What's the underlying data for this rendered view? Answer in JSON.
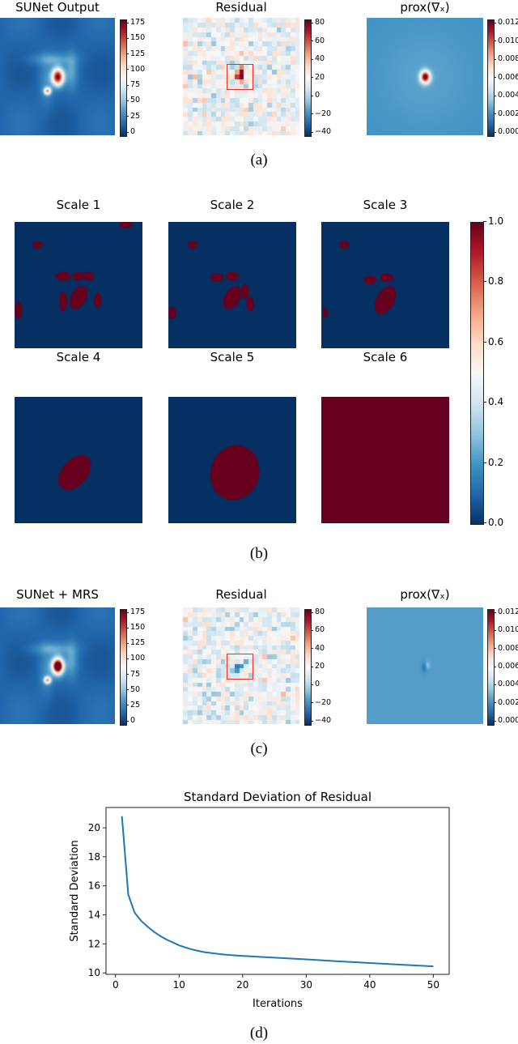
{
  "colormap": {
    "low": "#053061",
    "mid": "#f7f7f7",
    "high": "#67001f"
  },
  "panel_a": {
    "caption": "(a)",
    "titles": [
      "SUNet Output",
      "Residual",
      "prox(∇ₓ)"
    ],
    "cbar_ticks": [
      [
        "0",
        "25",
        "50",
        "75",
        "100",
        "125",
        "150",
        "175"
      ],
      [
        "−40",
        "−20",
        "0",
        "20",
        "40",
        "60",
        "80"
      ],
      [
        "0.000",
        "0.002",
        "0.004",
        "0.006",
        "0.008",
        "0.010",
        "0.012"
      ]
    ],
    "highlight_box_color": "#e8302a"
  },
  "panel_b": {
    "caption": "(b)",
    "titles": [
      "Scale 1",
      "Scale 2",
      "Scale 3",
      "Scale 4",
      "Scale 5",
      "Scale 6"
    ],
    "cbar_ticks": [
      "0.0",
      "0.2",
      "0.4",
      "0.6",
      "0.8",
      "1.0"
    ]
  },
  "panel_c": {
    "caption": "(c)",
    "titles": [
      "SUNet + MRS",
      "Residual",
      "prox(∇ₓ)"
    ],
    "cbar_ticks": [
      [
        "0",
        "25",
        "50",
        "75",
        "100",
        "125",
        "150",
        "175"
      ],
      [
        "−40",
        "−20",
        "0",
        "20",
        "40",
        "60",
        "80"
      ],
      [
        "0.000",
        "0.002",
        "0.004",
        "0.006",
        "0.008",
        "0.010",
        "0.012"
      ]
    ]
  },
  "panel_d_caption": "(d)",
  "chart_data": {
    "type": "line",
    "title": "Standard Deviation of Residual",
    "xlabel": "Iterations",
    "ylabel": "Standard Deviation",
    "xlim": [
      -1.5,
      52.5
    ],
    "ylim": [
      9.9,
      21.4
    ],
    "xticks": [
      0,
      10,
      20,
      30,
      40,
      50
    ],
    "yticks": [
      10,
      12,
      14,
      16,
      18,
      20
    ],
    "grid": false,
    "series": [
      {
        "color": "#1f77b4",
        "x": [
          1,
          2,
          3,
          4,
          5,
          6,
          7,
          8,
          9,
          10,
          11,
          12,
          13,
          14,
          15,
          16,
          17,
          18,
          19,
          20,
          25,
          30,
          35,
          40,
          45,
          50
        ],
        "y": [
          20.8,
          15.4,
          14.15,
          13.6,
          13.2,
          12.85,
          12.55,
          12.3,
          12.1,
          11.9,
          11.75,
          11.62,
          11.52,
          11.43,
          11.37,
          11.32,
          11.27,
          11.23,
          11.2,
          11.17,
          11.05,
          10.93,
          10.8,
          10.68,
          10.56,
          10.45
        ]
      }
    ]
  }
}
